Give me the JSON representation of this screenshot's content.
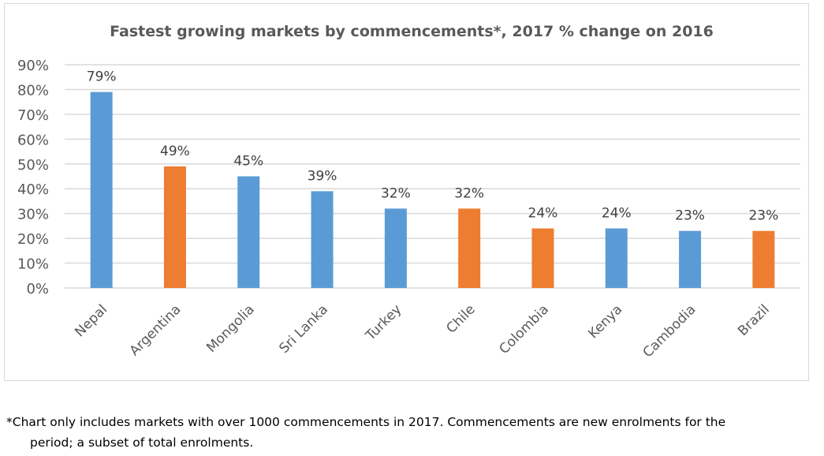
{
  "chart_data": {
    "type": "bar",
    "title": "Fastest growing markets by commencements*, 2017 % change on 2016",
    "categories": [
      "Nepal",
      "Argentina",
      "Mongolia",
      "Sri Lanka",
      "Turkey",
      "Chile",
      "Colombia",
      "Kenya",
      "Cambodia",
      "Brazil"
    ],
    "values": [
      79,
      49,
      45,
      39,
      32,
      32,
      24,
      24,
      23,
      23
    ],
    "data_labels": [
      "79%",
      "49%",
      "45%",
      "39%",
      "32%",
      "32%",
      "24%",
      "24%",
      "23%",
      "23%"
    ],
    "bar_colors": [
      "#5B9BD5",
      "#ED7D31",
      "#5B9BD5",
      "#5B9BD5",
      "#5B9BD5",
      "#ED7D31",
      "#ED7D31",
      "#5B9BD5",
      "#5B9BD5",
      "#ED7D31"
    ],
    "yticks": [
      "0%",
      "10%",
      "20%",
      "30%",
      "40%",
      "50%",
      "60%",
      "70%",
      "80%",
      "90%"
    ],
    "ylim": [
      0,
      90
    ],
    "xlabel": "",
    "ylabel": "",
    "grid": true
  },
  "footnote": {
    "line1": "*Chart only includes markets with over 1000 commencements in 2017. Commencements are new enrolments for the",
    "line2": "period; a subset of total enrolments."
  }
}
